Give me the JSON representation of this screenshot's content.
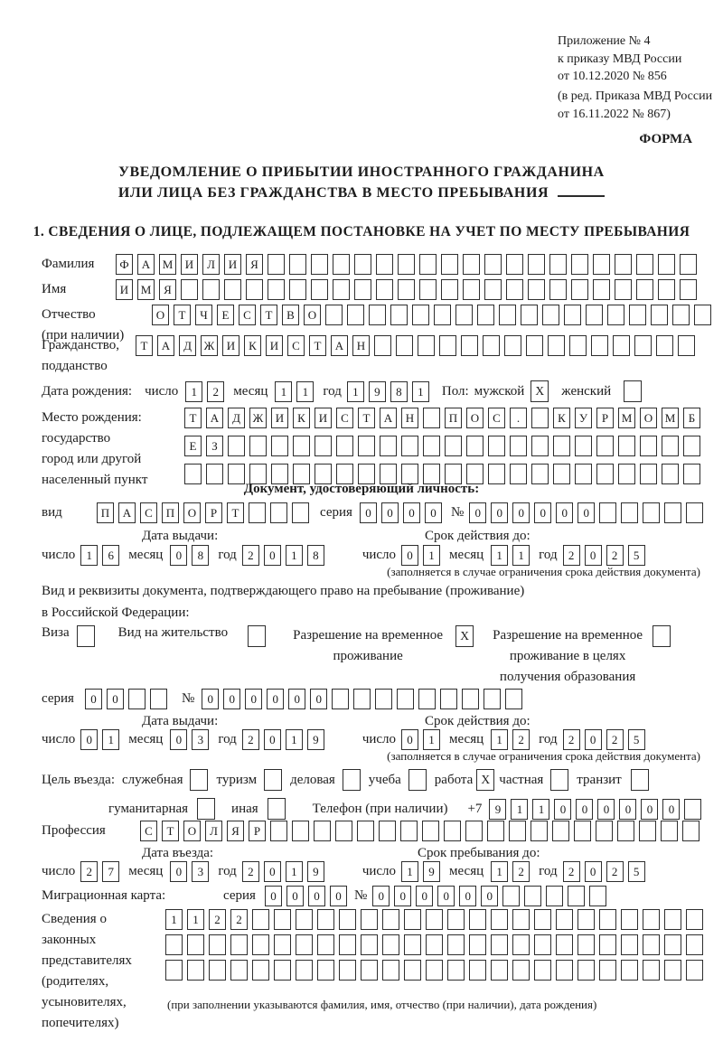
{
  "doc": {
    "annex_lines": [
      "Приложение № 4",
      "к приказу МВД России",
      "от 10.12.2020 № 856"
    ],
    "amend_lines": [
      "(в ред. Приказа МВД России",
      "от 16.11.2022 № 867)"
    ],
    "form_label": "ФОРМА",
    "title1": "УВЕДОМЛЕНИЕ О ПРИБЫТИИ ИНОСТРАННОГО ГРАЖДАНИНА",
    "title2": "ИЛИ ЛИЦА БЕЗ ГРАЖДАНСТВА В МЕСТО ПРЕБЫВАНИЯ",
    "section1": "1. СВЕДЕНИЯ О ЛИЦЕ, ПОДЛЕЖАЩЕМ ПОСТАНОВКЕ НА УЧЕТ ПО МЕСТУ ПРЕБЫВАНИЯ"
  },
  "labels": {
    "day": "число",
    "month": "месяц",
    "year": "год",
    "series": "серия",
    "number": "№",
    "issue_date": "Дата выдачи:",
    "valid_until": "Срок действия до:",
    "entry_date": "Дата въезда:",
    "stay_until": "Срок пребывания до:",
    "validity_note": "(заполняется в случае ограничения срока действия документа)"
  },
  "person": {
    "surname": {
      "label": "Фамилия",
      "value": "ФАМИЛИЯ",
      "len": 27
    },
    "given_name": {
      "label": "Имя",
      "value": "ИМЯ",
      "len": 27
    },
    "patronymic": {
      "label": "Отчество",
      "label2": "(при наличии)",
      "value": "ОТЧЕСТВО",
      "len": 26
    },
    "citizenship": {
      "label": "Гражданство,",
      "label2": "подданство",
      "value": "ТАДЖИКИСТАН",
      "len": 26
    },
    "birth_date": {
      "label": "Дата рождения:",
      "day": {
        "value": "12",
        "len": 2
      },
      "month": {
        "value": "11",
        "len": 2
      },
      "year": {
        "value": "1981",
        "len": 4
      }
    },
    "sex": {
      "label": "Пол:",
      "male_label": "мужской",
      "male_value": "X",
      "female_label": "женский",
      "female_value": ""
    },
    "birth_place": {
      "label_lines": [
        "Место рождения:",
        "государство",
        "город или другой",
        "населенный пункт"
      ],
      "row1": {
        "value": "ТАДЖИКИСТАН ПОС. КУРМОМБ",
        "len": 24
      },
      "row2": {
        "value": "ЕЗ",
        "len": 24
      },
      "row3": {
        "value": "",
        "len": 24
      }
    }
  },
  "identity_doc": {
    "header": "Документ, удостоверяющий личность:",
    "kind_label": "вид",
    "kind": {
      "value": "ПАСПОРТ",
      "len": 10
    },
    "series": {
      "value": "0000",
      "len": 4
    },
    "number": {
      "value": "000000",
      "len": 11
    },
    "issue": {
      "day": {
        "value": "16",
        "len": 2
      },
      "month": {
        "value": "08",
        "len": 2
      },
      "year": {
        "value": "2018",
        "len": 4
      }
    },
    "valid": {
      "day": {
        "value": "01",
        "len": 2
      },
      "month": {
        "value": "11",
        "len": 2
      },
      "year": {
        "value": "2025",
        "len": 4
      }
    }
  },
  "residence_doc": {
    "intro1": "Вид и реквизиты документа, подтверждающего право на пребывание (проживание)",
    "intro2": "в Российской Федерации:",
    "options": [
      {
        "label_lines": [
          "Виза"
        ],
        "value": ""
      },
      {
        "label_lines": [
          "Вид на жительство"
        ],
        "value": ""
      },
      {
        "label_lines": [
          "Разрешение на временное",
          "проживание"
        ],
        "value": "X"
      },
      {
        "label_lines": [
          "Разрешение на временное",
          "проживание в целях",
          "получения образования"
        ],
        "value": ""
      }
    ],
    "series": {
      "value": "00",
      "len": 4
    },
    "number": {
      "value": "000000",
      "len": 15
    },
    "issue": {
      "day": {
        "value": "01",
        "len": 2
      },
      "month": {
        "value": "03",
        "len": 2
      },
      "year": {
        "value": "2019",
        "len": 4
      }
    },
    "valid": {
      "day": {
        "value": "01",
        "len": 2
      },
      "month": {
        "value": "12",
        "len": 2
      },
      "year": {
        "value": "2025",
        "len": 4
      }
    }
  },
  "visit": {
    "purpose_label": "Цель въезда:",
    "purposes": [
      {
        "label": "служебная",
        "value": ""
      },
      {
        "label": "туризм",
        "value": ""
      },
      {
        "label": "деловая",
        "value": ""
      },
      {
        "label": "учеба",
        "value": ""
      },
      {
        "label": "работа",
        "value": "X"
      },
      {
        "label": "частная",
        "value": ""
      },
      {
        "label": "транзит",
        "value": ""
      },
      {
        "label": "гуманитарная",
        "value": ""
      },
      {
        "label": "иная",
        "value": ""
      }
    ],
    "phone_label": "Телефон (при наличии)",
    "phone_prefix": "+7",
    "phone": {
      "value": "911000000",
      "len": 10
    },
    "profession": {
      "label": "Профессия",
      "value": "СТОЛЯР",
      "len": 26
    },
    "entry": {
      "day": {
        "value": "27",
        "len": 2
      },
      "month": {
        "value": "03",
        "len": 2
      },
      "year": {
        "value": "2019",
        "len": 4
      }
    },
    "stay": {
      "day": {
        "value": "19",
        "len": 2
      },
      "month": {
        "value": "12",
        "len": 2
      },
      "year": {
        "value": "2025",
        "len": 4
      }
    },
    "migration_card": {
      "label": "Миграционная карта:",
      "series": {
        "value": "0000",
        "len": 4
      },
      "number": {
        "value": "000000",
        "len": 11
      }
    }
  },
  "representatives": {
    "label_lines": [
      "Сведения о",
      "законных",
      "представителях",
      "(родителях,",
      "усыновителях,",
      "попечителях)"
    ],
    "row1": {
      "value": "1122",
      "len": 25
    },
    "row2": {
      "value": "",
      "len": 25
    },
    "row3": {
      "value": "",
      "len": 25
    },
    "note": "(при заполнении указываются фамилия, имя, отчество (при наличии), дата рождения)"
  }
}
